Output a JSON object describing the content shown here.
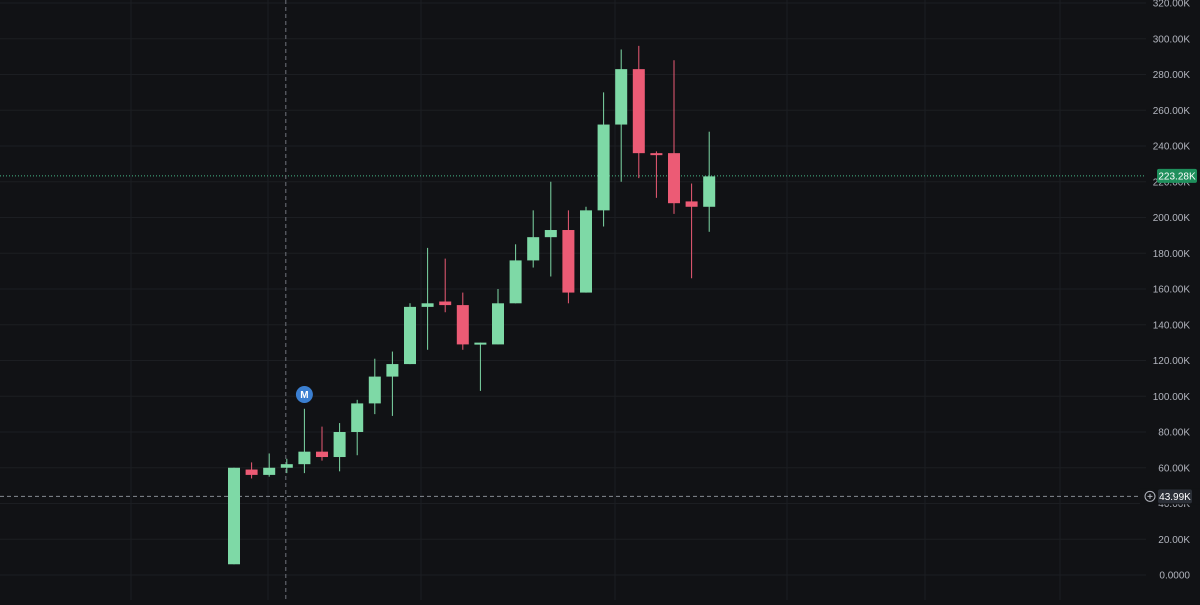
{
  "chart_data": {
    "type": "candlestick",
    "title": "",
    "xlabel": "",
    "ylabel": "",
    "ylim": [
      0,
      320000
    ],
    "grid": true,
    "y_ticks": [
      {
        "value": 0,
        "label": "0.0000"
      },
      {
        "value": 20000,
        "label": "20.00K"
      },
      {
        "value": 40000,
        "label": "40.00K"
      },
      {
        "value": 60000,
        "label": "60.00K"
      },
      {
        "value": 80000,
        "label": "80.00K"
      },
      {
        "value": 100000,
        "label": "100.00K"
      },
      {
        "value": 120000,
        "label": "120.00K"
      },
      {
        "value": 140000,
        "label": "140.00K"
      },
      {
        "value": 160000,
        "label": "160.00K"
      },
      {
        "value": 180000,
        "label": "180.00K"
      },
      {
        "value": 200000,
        "label": "200.00K"
      },
      {
        "value": 220000,
        "label": "220.00K"
      },
      {
        "value": 240000,
        "label": "240.00K"
      },
      {
        "value": 260000,
        "label": "260.00K"
      },
      {
        "value": 280000,
        "label": "280.00K"
      },
      {
        "value": 300000,
        "label": "300.00K"
      },
      {
        "value": 320000,
        "label": "320.00K"
      }
    ],
    "candles": [
      {
        "o": 6000,
        "h": 60000,
        "l": 6000,
        "c": 60000
      },
      {
        "o": 59000,
        "h": 63000,
        "l": 54000,
        "c": 56000
      },
      {
        "o": 56000,
        "h": 68000,
        "l": 55000,
        "c": 60000
      },
      {
        "o": 60000,
        "h": 65000,
        "l": 57000,
        "c": 62000
      },
      {
        "o": 62000,
        "h": 93000,
        "l": 57000,
        "c": 69000
      },
      {
        "o": 69000,
        "h": 83000,
        "l": 64000,
        "c": 66000
      },
      {
        "o": 66000,
        "h": 85000,
        "l": 58000,
        "c": 80000
      },
      {
        "o": 80000,
        "h": 98000,
        "l": 67000,
        "c": 96000
      },
      {
        "o": 96000,
        "h": 121000,
        "l": 90000,
        "c": 111000
      },
      {
        "o": 111000,
        "h": 125000,
        "l": 89000,
        "c": 118000
      },
      {
        "o": 118000,
        "h": 152000,
        "l": 118000,
        "c": 150000
      },
      {
        "o": 150000,
        "h": 183000,
        "l": 126000,
        "c": 152000
      },
      {
        "o": 153000,
        "h": 177000,
        "l": 147000,
        "c": 151000
      },
      {
        "o": 151000,
        "h": 158000,
        "l": 126000,
        "c": 129000
      },
      {
        "o": 129000,
        "h": 130000,
        "l": 103000,
        "c": 130000
      },
      {
        "o": 129000,
        "h": 160000,
        "l": 129000,
        "c": 152000
      },
      {
        "o": 152000,
        "h": 185000,
        "l": 152000,
        "c": 176000
      },
      {
        "o": 176000,
        "h": 204000,
        "l": 172000,
        "c": 189000
      },
      {
        "o": 189000,
        "h": 220000,
        "l": 167000,
        "c": 193000
      },
      {
        "o": 193000,
        "h": 204000,
        "l": 152000,
        "c": 158000
      },
      {
        "o": 158000,
        "h": 206000,
        "l": 158000,
        "c": 204000
      },
      {
        "o": 204000,
        "h": 270000,
        "l": 195000,
        "c": 252000
      },
      {
        "o": 252000,
        "h": 294000,
        "l": 220000,
        "c": 283000
      },
      {
        "o": 283000,
        "h": 296000,
        "l": 222000,
        "c": 236000
      },
      {
        "o": 236000,
        "h": 237000,
        "l": 211000,
        "c": 235000
      },
      {
        "o": 236000,
        "h": 288000,
        "l": 202000,
        "c": 208000
      },
      {
        "o": 209000,
        "h": 219000,
        "l": 166000,
        "c": 206000
      },
      {
        "o": 206000,
        "h": 248000,
        "l": 192000,
        "c": 223000
      }
    ],
    "annotations": [
      {
        "type": "marker",
        "label": "M",
        "candle_index": 4,
        "value": 101000
      }
    ],
    "price_lines": [
      {
        "value": 223280,
        "label": "223.28K",
        "color": "#4fd69c"
      },
      {
        "value": 43990,
        "label": "43.99K",
        "color": "#9aa0a8"
      }
    ],
    "crosshair": {
      "candle_index": 3
    },
    "colors": {
      "background": "#111215",
      "up": "#7ed9a6",
      "down": "#ec5b75",
      "grid": "#1c1e22",
      "axis_text": "#b2b5be",
      "marker": "#3b7fd1"
    }
  }
}
